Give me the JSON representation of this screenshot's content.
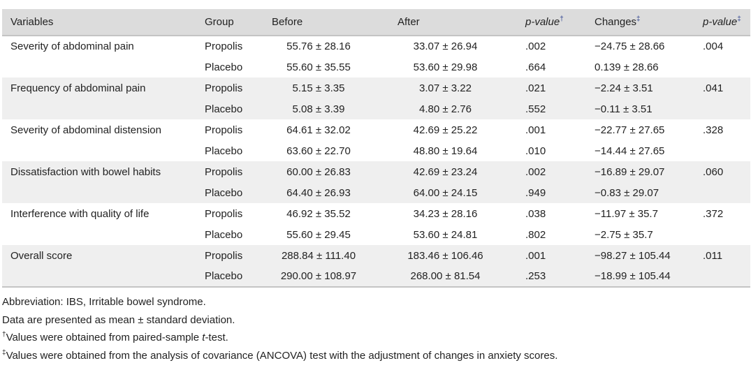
{
  "table": {
    "headers": {
      "variables": "Variables",
      "group": "Group",
      "before": "Before",
      "after": "After",
      "pvalue1": "p-value",
      "pvalue1_mark": "†",
      "changes": "Changes",
      "changes_mark": "‡",
      "pvalue2": "p-value",
      "pvalue2_mark": "‡"
    },
    "rows": [
      {
        "variable": "Severity of abdominal pain",
        "group": "Propolis",
        "before": "55.76 ± 28.16",
        "after": "33.07 ± 26.94",
        "p1": ".002",
        "changes": "−24.75 ± 28.66",
        "p2": ".004"
      },
      {
        "variable": "",
        "group": "Placebo",
        "before": "55.60 ± 35.55",
        "after": "53.60 ± 29.98",
        "p1": ".664",
        "changes": "0.139 ± 28.66",
        "p2": ""
      },
      {
        "variable": "Frequency of abdominal pain",
        "group": "Propolis",
        "before": "5.15 ± 3.35",
        "after": "3.07 ± 3.22",
        "p1": ".021",
        "changes": "−2.24 ± 3.51",
        "p2": ".041"
      },
      {
        "variable": "",
        "group": "Placebo",
        "before": "5.08 ± 3.39",
        "after": "4.80 ± 2.76",
        "p1": ".552",
        "changes": "−0.11 ± 3.51",
        "p2": ""
      },
      {
        "variable": "Severity of abdominal distension",
        "group": "Propolis",
        "before": "64.61 ± 32.02",
        "after": "42.69 ± 25.22",
        "p1": ".001",
        "changes": "−22.77 ± 27.65",
        "p2": ".328"
      },
      {
        "variable": "",
        "group": "Placebo",
        "before": "63.60 ± 22.70",
        "after": "48.80 ± 19.64",
        "p1": ".010",
        "changes": "−14.44 ± 27.65",
        "p2": ""
      },
      {
        "variable": "Dissatisfaction with bowel habits",
        "group": "Propolis",
        "before": "60.00 ± 26.83",
        "after": "42.69 ± 23.24",
        "p1": ".002",
        "changes": "−16.89 ± 29.07",
        "p2": ".060"
      },
      {
        "variable": "",
        "group": "Placebo",
        "before": "64.40 ± 26.93",
        "after": "64.00 ± 24.15",
        "p1": ".949",
        "changes": "−0.83 ± 29.07",
        "p2": ""
      },
      {
        "variable": "Interference with quality of life",
        "group": "Propolis",
        "before": "46.92 ± 35.52",
        "after": "34.23 ± 28.16",
        "p1": ".038",
        "changes": "−11.97 ± 35.7",
        "p2": ".372"
      },
      {
        "variable": "",
        "group": "Placebo",
        "before": "55.60 ± 29.45",
        "after": "53.60 ± 24.81",
        "p1": ".802",
        "changes": "−2.75 ± 35.7",
        "p2": ""
      },
      {
        "variable": "Overall score",
        "group": "Propolis",
        "before": "288.84 ± 111.40",
        "after": "183.46 ± 106.46",
        "p1": ".001",
        "changes": "−98.27 ± 105.44",
        "p2": ".011"
      },
      {
        "variable": "",
        "group": "Placebo",
        "before": "290.00 ± 108.97",
        "after": "268.00 ± 81.54",
        "p1": ".253",
        "changes": "−18.99 ± 105.44",
        "p2": ""
      }
    ]
  },
  "footnotes": {
    "abbreviation": "Abbreviation: IBS, Irritable bowel syndrome.",
    "data_presented": "Data are presented as mean ± standard deviation.",
    "dagger_mark": "†",
    "dagger_text_pre": "Values were obtained from paired-sample ",
    "dagger_text_italic": "t",
    "dagger_text_post": "-test.",
    "ddagger_mark": "‡",
    "ddagger_text": "Values were obtained from the analysis of covariance (ANCOVA) test with the adjustment of changes in anxiety scores."
  }
}
